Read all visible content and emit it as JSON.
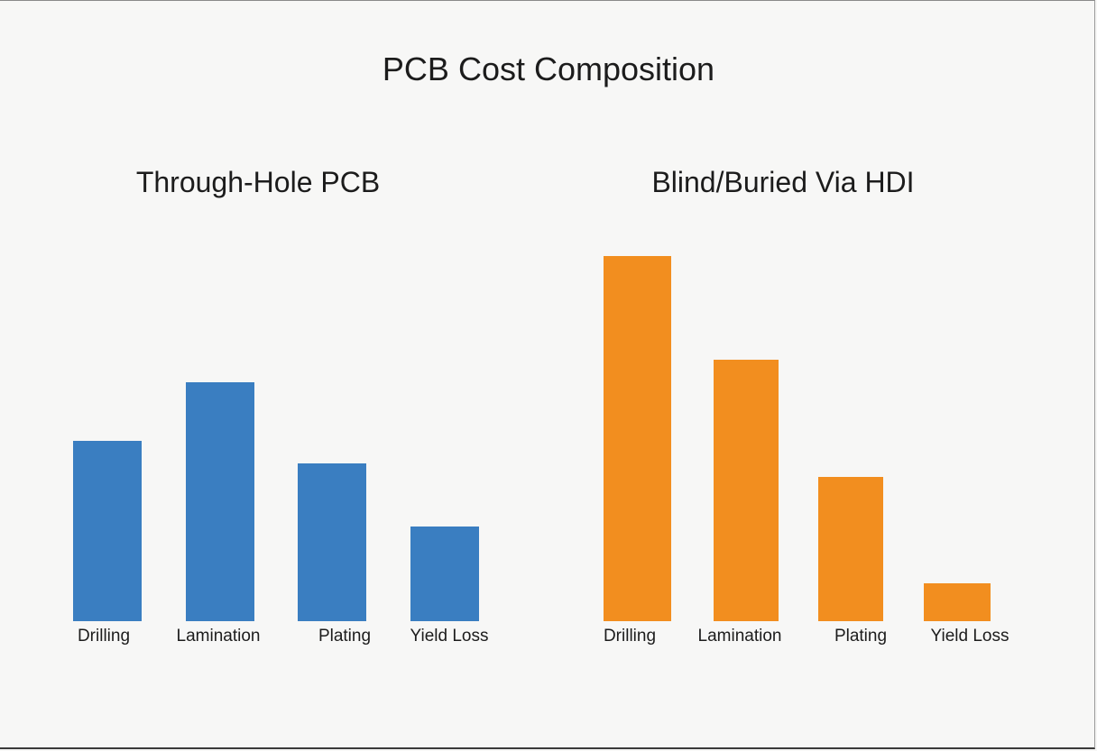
{
  "title": "PCB Cost Composition",
  "chart_data": [
    {
      "type": "bar",
      "title": "Through-Hole PCB",
      "categories": [
        "Drilling",
        "Lamination",
        "Plating",
        "Yield Loss"
      ],
      "values": [
        20,
        26.5,
        17.5,
        10.5
      ],
      "ylim": [
        0,
        40
      ],
      "grid": false,
      "legend": "none",
      "color": "#3a7ec1",
      "xlabel": "",
      "ylabel": ""
    },
    {
      "type": "bar",
      "title": "Blind/Buried Via HDI",
      "categories": [
        "Drilling",
        "Lamination",
        "Plating",
        "Yield Loss"
      ],
      "values": [
        40.5,
        29,
        16,
        4.2
      ],
      "ylim": [
        0,
        40
      ],
      "grid": false,
      "legend": "none",
      "color": "#f28e1f",
      "xlabel": "",
      "ylabel": ""
    }
  ]
}
